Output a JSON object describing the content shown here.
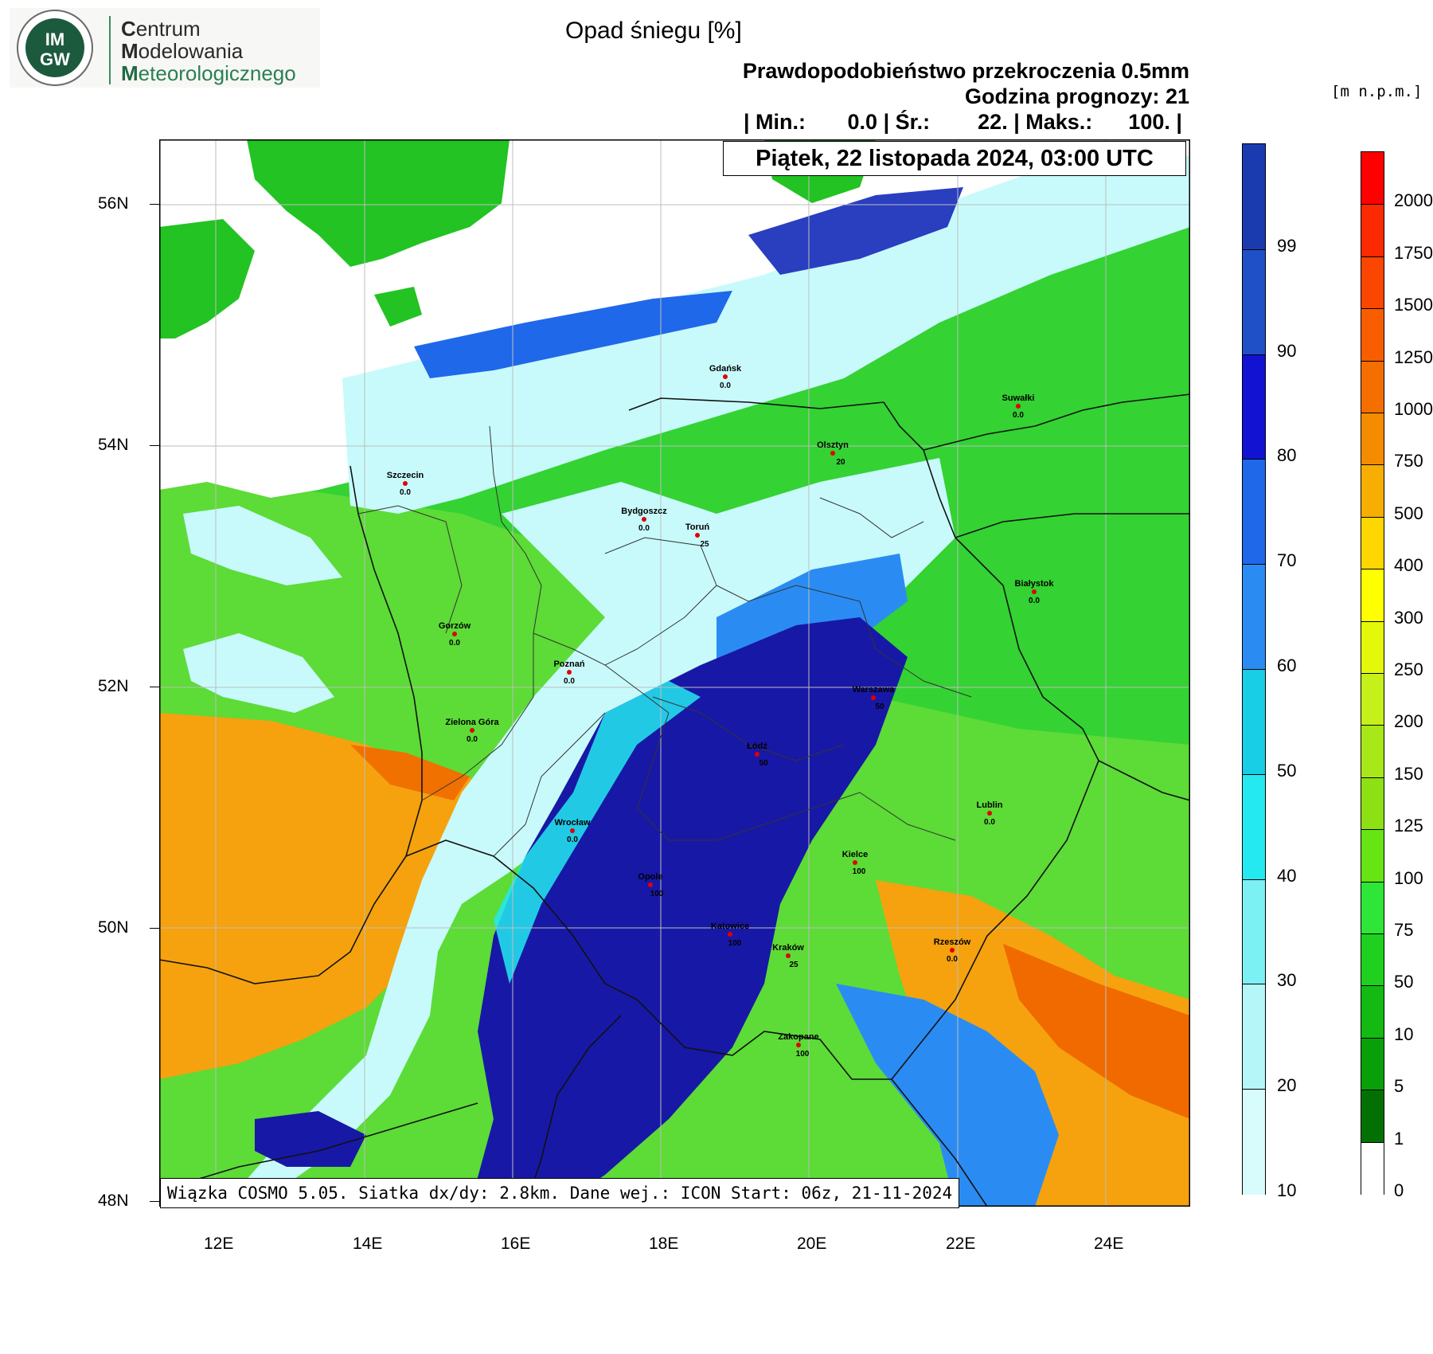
{
  "logo": {
    "badge_top": "IM",
    "badge_bottom": "GW",
    "line1_initial": "C",
    "line1_rest": "entrum",
    "line2_initial": "M",
    "line2_rest": "odelowania",
    "line3_initial": "M",
    "line3_rest": "eteorologicznego"
  },
  "header": {
    "title": "Opad śniegu [%]",
    "subtitle": "Prawdopodobieństwo przekroczenia 0.5mm",
    "forecast_hour": "Godzina prognozy: 21",
    "stats_text": "| Min.:       0.0 | Śr.:        22. | Maks.:      100. |",
    "date": "Piątek, 22 listopada 2024, 03:00 UTC"
  },
  "elevation_unit": "[m n.p.m.]",
  "footer": "Wiązka COSMO 5.05. Siatka dx/dy: 2.8km. Dane wej.: ICON Start: 06z, 21-11-2024",
  "axes": {
    "lat_ticks": [
      "56N",
      "54N",
      "52N",
      "50N",
      "48N"
    ],
    "lon_ticks": [
      "12E",
      "14E",
      "16E",
      "18E",
      "20E",
      "22E",
      "24E"
    ]
  },
  "snow_scale": {
    "labels": [
      "99",
      "90",
      "80",
      "70",
      "60",
      "50",
      "40",
      "30",
      "20",
      "10"
    ],
    "colors": [
      "#1a3bb0",
      "#2050c8",
      "#1212d2",
      "#1f68ea",
      "#2a8cf3",
      "#18cde6",
      "#24e9f0",
      "#7cf1f4",
      "#b5f7f9",
      "#d8fbfc"
    ]
  },
  "elev_scale": {
    "labels": [
      "2000",
      "1750",
      "1500",
      "1250",
      "1000",
      "750",
      "500",
      "400",
      "300",
      "250",
      "200",
      "150",
      "125",
      "100",
      "75",
      "50",
      "10",
      "5",
      "1",
      "0"
    ],
    "colors": [
      "#fe0000",
      "#fc2a00",
      "#fb4600",
      "#f85e00",
      "#f56e00",
      "#f58c00",
      "#f7ae00",
      "#ffd700",
      "#ffff00",
      "#e4f80a",
      "#c6f01a",
      "#a8e818",
      "#8ce014",
      "#66e414",
      "#2ee638",
      "#1fd01f",
      "#12ba12",
      "#08a008",
      "#037003",
      "#ffffff"
    ]
  },
  "cities": [
    {
      "name": "Gdańsk",
      "value": "0.0"
    },
    {
      "name": "Suwałki",
      "value": "0.0"
    },
    {
      "name": "Olsztyn",
      "value": "20"
    },
    {
      "name": "Szczecin",
      "value": "0.0"
    },
    {
      "name": "Bydgoszcz",
      "value": "0.0"
    },
    {
      "name": "Toruń",
      "value": "25"
    },
    {
      "name": "Białystok",
      "value": "0.0"
    },
    {
      "name": "Gorzów",
      "value": "0.0"
    },
    {
      "name": "Poznań",
      "value": "0.0"
    },
    {
      "name": "Warszawa",
      "value": "50"
    },
    {
      "name": "Zielona Góra",
      "value": "0.0"
    },
    {
      "name": "Łódź",
      "value": "50"
    },
    {
      "name": "Lublin",
      "value": "0.0"
    },
    {
      "name": "Wrocław",
      "value": "0.0"
    },
    {
      "name": "Kielce",
      "value": "100"
    },
    {
      "name": "Opole",
      "value": "100"
    },
    {
      "name": "Katowice",
      "value": "100"
    },
    {
      "name": "Kraków",
      "value": "25"
    },
    {
      "name": "Rzeszów",
      "value": "0.0"
    },
    {
      "name": "Zakopane",
      "value": "100"
    }
  ]
}
